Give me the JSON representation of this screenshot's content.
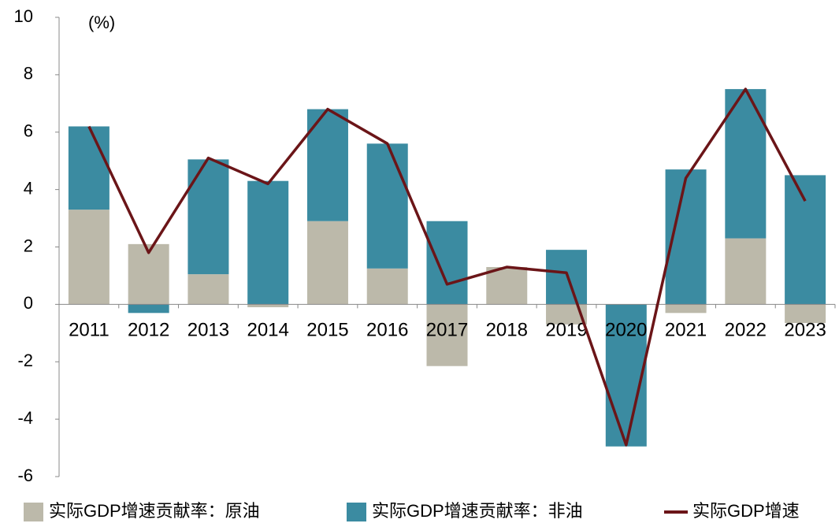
{
  "chart_data": {
    "type": "bar_line",
    "annotation": "(%)",
    "categories": [
      "2011",
      "2012",
      "2013",
      "2014",
      "2015",
      "2016",
      "2017",
      "2018",
      "2019",
      "2020",
      "2021",
      "2022",
      "2023"
    ],
    "series": [
      {
        "name": "实际GDP增速贡献率：原油",
        "color": "#bcb9aa",
        "kind": "bar",
        "values": [
          3.3,
          2.1,
          1.05,
          -0.1,
          2.9,
          1.25,
          -2.15,
          1.3,
          -0.7,
          0,
          -0.3,
          2.3,
          -0.65
        ]
      },
      {
        "name": "实际GDP增速贡献率：非油",
        "color": "#3b8ba1",
        "kind": "bar",
        "values": [
          2.9,
          -0.3,
          4.0,
          4.3,
          3.9,
          4.35,
          2.9,
          0,
          1.9,
          -4.95,
          4.7,
          5.2,
          4.5
        ]
      },
      {
        "name": "实际GDP增速",
        "color": "#6b1518",
        "kind": "line",
        "values": [
          6.2,
          1.8,
          5.1,
          4.2,
          6.8,
          5.6,
          0.7,
          1.3,
          1.1,
          -4.9,
          4.4,
          7.5,
          3.6
        ]
      }
    ],
    "ylim": [
      -6,
      10
    ],
    "yticks": [
      -6,
      -4,
      -2,
      0,
      2,
      4,
      6,
      8,
      10
    ]
  }
}
